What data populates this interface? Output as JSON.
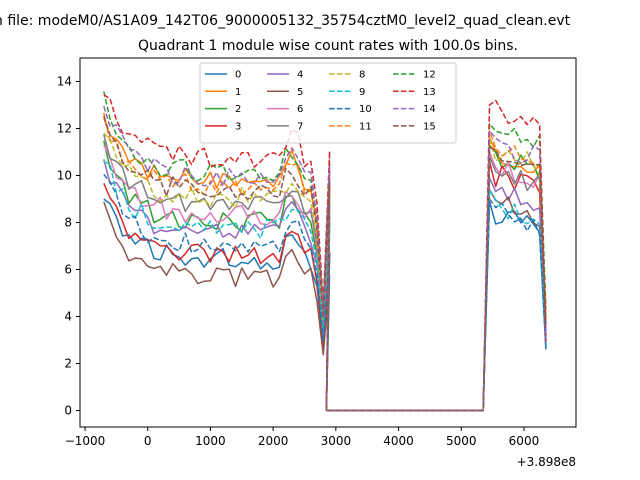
{
  "chart_data": {
    "type": "line",
    "suptitle": "n file: modeM0/AS1A09_142T06_9000005132_35754cztM0_level2_quad_clean.evt",
    "title": "Quadrant 1 module wise count rates with 100.0s bins.",
    "xlabel": "",
    "ylabel": "",
    "x_offset_label": "+3.898e8",
    "xlim": [
      -1080,
      6830
    ],
    "ylim": [
      -0.7,
      15
    ],
    "xticks": [
      -1000,
      0,
      1000,
      2000,
      3000,
      4000,
      5000,
      6000
    ],
    "xtick_labels": [
      "−1000",
      "0",
      "1000",
      "2000",
      "3000",
      "4000",
      "5000",
      "6000"
    ],
    "yticks": [
      0,
      2,
      4,
      6,
      8,
      10,
      12,
      14
    ],
    "ytick_labels": [
      "0",
      "2",
      "4",
      "6",
      "8",
      "10",
      "12",
      "14"
    ],
    "legend_position": "top-center",
    "legend_columns": 4,
    "segment1": {
      "x_start": -700,
      "x_step": 100,
      "count": 37
    },
    "gap": {
      "x": [
        2850,
        2950,
        5250,
        5350
      ],
      "y": [
        0,
        0,
        0,
        0
      ]
    },
    "segment2": {
      "x_start": 5450,
      "x_step": 100,
      "count": 10
    },
    "series": [
      {
        "name": "0",
        "color": "#1f77b4",
        "dash": "solid",
        "level1": 7.0,
        "level2": 7.9
      },
      {
        "name": "1",
        "color": "#ff7f0e",
        "dash": "solid",
        "level1": 10.3,
        "level2": 10.6
      },
      {
        "name": "2",
        "color": "#2ca02c",
        "dash": "solid",
        "level1": 8.6,
        "level2": 10.3
      },
      {
        "name": "3",
        "color": "#d62728",
        "dash": "solid",
        "level1": 7.2,
        "level2": 9.6
      },
      {
        "name": "4",
        "color": "#9467bd",
        "dash": "solid",
        "level1": 8.1,
        "level2": 8.9
      },
      {
        "name": "5",
        "color": "#8c564b",
        "dash": "solid",
        "level1": 6.2,
        "level2": 8.4
      },
      {
        "name": "6",
        "color": "#e377c2",
        "dash": "solid",
        "level1": 8.9,
        "level2": 10.0
      },
      {
        "name": "7",
        "color": "#7f7f7f",
        "dash": "solid",
        "level1": 9.3,
        "level2": 9.8
      },
      {
        "name": "8",
        "color": "#bcbd22",
        "dash": "dashed",
        "level1": 9.6,
        "level2": 10.6
      },
      {
        "name": "9",
        "color": "#17becf",
        "dash": "dashed",
        "level1": 8.3,
        "level2": 8.4
      },
      {
        "name": "10",
        "color": "#1f77b4",
        "dash": "dashed",
        "level1": 7.6,
        "level2": 8.0
      },
      {
        "name": "11",
        "color": "#ff7f0e",
        "dash": "dashed",
        "level1": 10.1,
        "level2": 10.9
      },
      {
        "name": "12",
        "color": "#2ca02c",
        "dash": "dashed",
        "level1": 10.7,
        "level2": 11.2
      },
      {
        "name": "13",
        "color": "#d62728",
        "dash": "dashed",
        "level1": 11.3,
        "level2": 12.0
      },
      {
        "name": "14",
        "color": "#9467bd",
        "dash": "dashed",
        "level1": 10.5,
        "level2": 10.9
      },
      {
        "name": "15",
        "color": "#8c564b",
        "dash": "dashed",
        "level1": 9.9,
        "level2": 10.2
      }
    ]
  }
}
